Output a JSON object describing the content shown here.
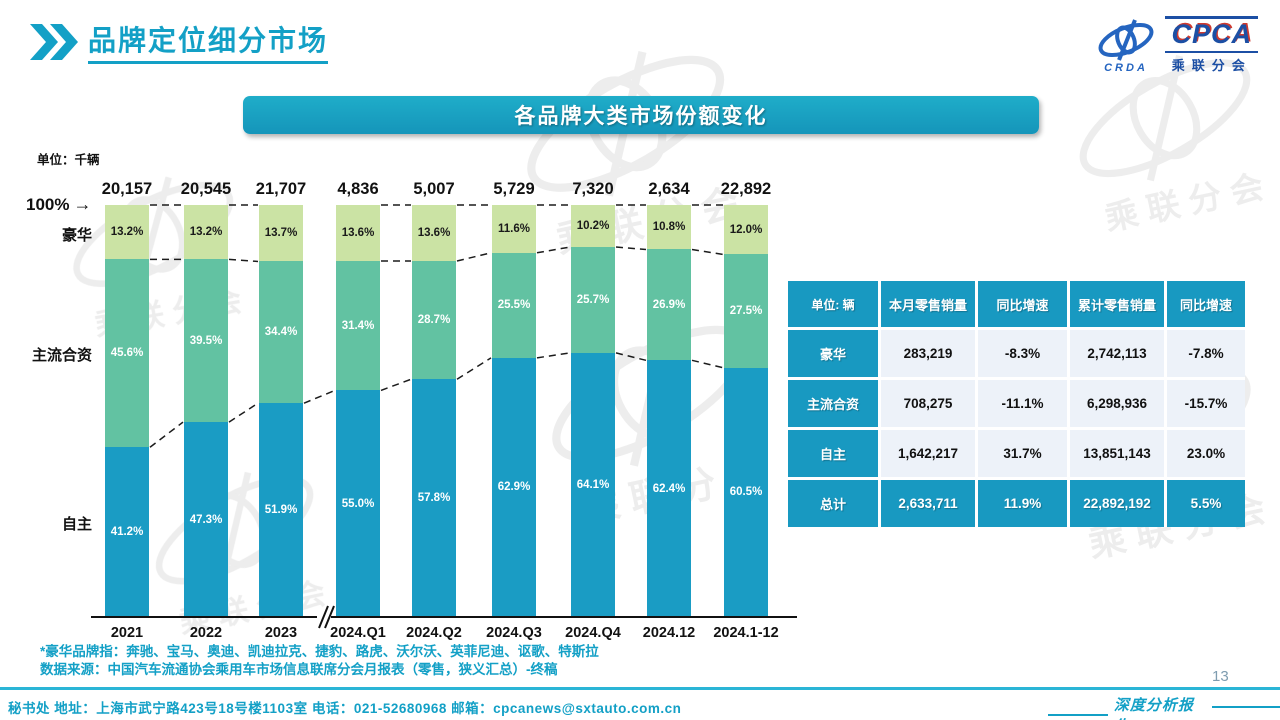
{
  "header": {
    "title": "品牌定位细分市场"
  },
  "logo": {
    "acronym": "CPCA",
    "crda": "CRDA",
    "subtitle": "乘联分会"
  },
  "banner": {
    "title": "各品牌大类市场份额变化"
  },
  "chart_data": {
    "type": "bar",
    "stacked": true,
    "unit_label": "单位：千辆",
    "axis_top_label": "100%",
    "axis_arrow": "→",
    "categories": [
      "2021",
      "2022",
      "2023",
      "2024.Q1",
      "2024.Q2",
      "2024.Q3",
      "2024.Q4",
      "2024.12",
      "2024.1-12"
    ],
    "totals": [
      "20,157",
      "20,545",
      "21,707",
      "4,836",
      "5,007",
      "5,729",
      "7,320",
      "2,634",
      "22,892"
    ],
    "series": [
      {
        "name": "豪华",
        "color": "#cbe3a4",
        "values": [
          13.2,
          13.2,
          13.7,
          13.6,
          13.6,
          11.6,
          10.2,
          10.8,
          12.0
        ]
      },
      {
        "name": "主流合资",
        "color": "#62c2a2",
        "values": [
          45.6,
          39.5,
          34.4,
          31.4,
          28.7,
          25.5,
          25.7,
          26.9,
          27.5
        ]
      },
      {
        "name": "自主",
        "color": "#1a9cc4",
        "values": [
          41.2,
          47.3,
          51.9,
          55.0,
          57.8,
          62.9,
          64.1,
          62.4,
          60.5
        ]
      }
    ],
    "break_after_index": 2,
    "ylim": [
      0,
      100
    ],
    "legend_position": "left-axis",
    "grid": false
  },
  "table": {
    "unit_header": "单位: 辆",
    "columns": [
      "本月零售销量",
      "同比增速",
      "累计零售销量",
      "同比增速"
    ],
    "rows": [
      {
        "label": "豪华",
        "values": [
          "283,219",
          "-8.3%",
          "2,742,113",
          "-7.8%"
        ],
        "total": false
      },
      {
        "label": "主流合资",
        "values": [
          "708,275",
          "-11.1%",
          "6,298,936",
          "-15.7%"
        ],
        "total": false
      },
      {
        "label": "自主",
        "values": [
          "1,642,217",
          "31.7%",
          "13,851,143",
          "23.0%"
        ],
        "total": false
      },
      {
        "label": "总计",
        "values": [
          "2,633,711",
          "11.9%",
          "22,892,192",
          "5.5%"
        ],
        "total": true
      }
    ]
  },
  "footnotes": {
    "line1": "*豪华品牌指：奔驰、宝马、奥迪、凯迪拉克、捷豹、路虎、沃尔沃、英菲尼迪、讴歌、特斯拉",
    "line2": "数据来源：中国汽车流通协会乘用车市场信息联席分会月报表（零售，狭义汇总）-终稿"
  },
  "footer": {
    "contact": "秘书处  地址：上海市武宁路423号18号楼1103室 电话：021-52680968   邮箱：cpcanews@sxtauto.com.cn",
    "badge": "深度分析报告"
  },
  "page_number": "13",
  "colors": {
    "accent": "#13a0c6",
    "table_teal": "#1899c1",
    "luxury": "#cbe3a4",
    "mainstream": "#62c2a2",
    "domestic": "#1a9cc4",
    "logo_blue": "#1c4fa4",
    "logo_red": "#cf3a30"
  }
}
